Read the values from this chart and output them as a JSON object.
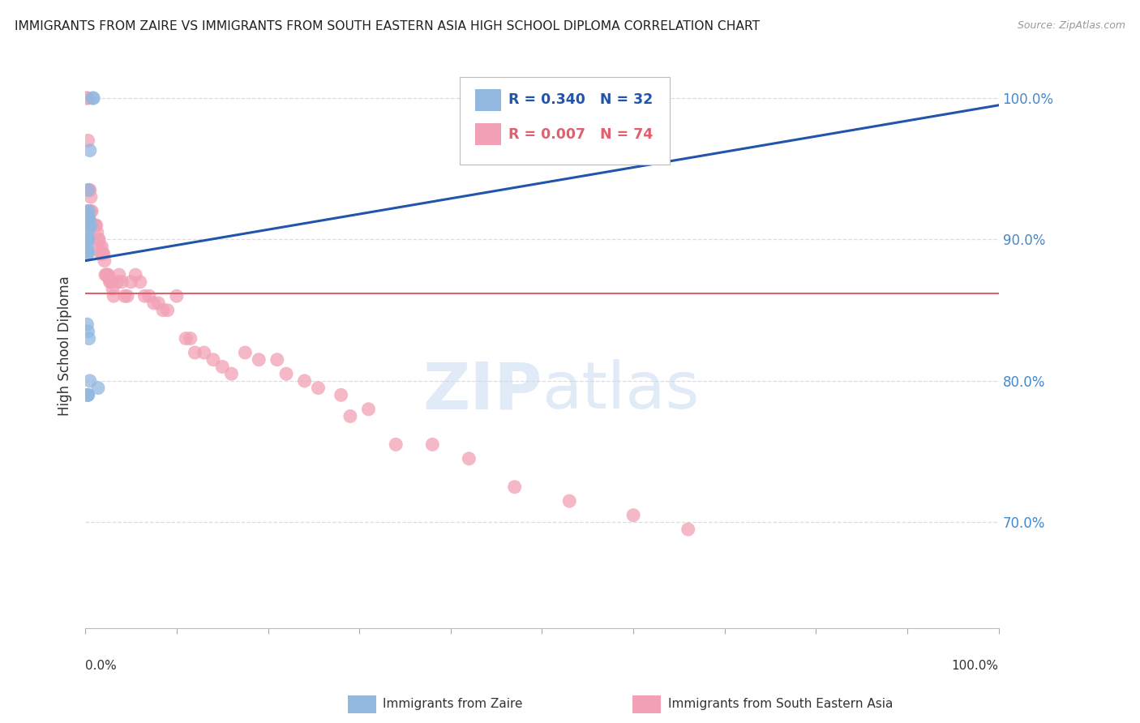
{
  "title": "IMMIGRANTS FROM ZAIRE VS IMMIGRANTS FROM SOUTH EASTERN ASIA HIGH SCHOOL DIPLOMA CORRELATION CHART",
  "source": "Source: ZipAtlas.com",
  "ylabel": "High School Diploma",
  "legend_label_blue": "R = 0.340   N = 32",
  "legend_label_pink": "R = 0.007   N = 74",
  "right_ytick_labels": [
    "100.0%",
    "90.0%",
    "80.0%",
    "70.0%"
  ],
  "right_ytick_values": [
    1.0,
    0.9,
    0.8,
    0.7
  ],
  "xlim": [
    0.0,
    1.0
  ],
  "ylim": [
    0.625,
    1.025
  ],
  "bottom_labels": [
    "Immigrants from Zaire",
    "Immigrants from South Eastern Asia"
  ],
  "blue_color": "#92b8e0",
  "pink_color": "#f2a0b5",
  "trend_blue_color": "#2255aa",
  "trend_pink_color": "#e06070",
  "blue_scatter_x": [
    0.008,
    0.009,
    0.005,
    0.003,
    0.003,
    0.003,
    0.004,
    0.003,
    0.003,
    0.004,
    0.003,
    0.003,
    0.003,
    0.006,
    0.003,
    0.004,
    0.003,
    0.002,
    0.002,
    0.003,
    0.002,
    0.003,
    0.003,
    0.002,
    0.002,
    0.003,
    0.004,
    0.005,
    0.014,
    0.002,
    0.003,
    0.003
  ],
  "blue_scatter_y": [
    1.0,
    1.0,
    0.963,
    0.935,
    0.92,
    0.92,
    0.915,
    0.915,
    0.915,
    0.914,
    0.913,
    0.912,
    0.912,
    0.91,
    0.91,
    0.908,
    0.905,
    0.9,
    0.9,
    0.9,
    0.895,
    0.892,
    0.89,
    0.89,
    0.84,
    0.835,
    0.83,
    0.8,
    0.795,
    0.79,
    0.79,
    0.79
  ],
  "pink_scatter_x": [
    0.002,
    0.002,
    0.003,
    0.004,
    0.004,
    0.005,
    0.005,
    0.006,
    0.006,
    0.007,
    0.008,
    0.009,
    0.01,
    0.01,
    0.011,
    0.012,
    0.013,
    0.014,
    0.015,
    0.016,
    0.017,
    0.018,
    0.018,
    0.019,
    0.02,
    0.021,
    0.022,
    0.023,
    0.024,
    0.025,
    0.026,
    0.027,
    0.028,
    0.029,
    0.03,
    0.031,
    0.035,
    0.037,
    0.04,
    0.043,
    0.046,
    0.05,
    0.055,
    0.06,
    0.065,
    0.07,
    0.075,
    0.08,
    0.085,
    0.09,
    0.1,
    0.11,
    0.115,
    0.12,
    0.13,
    0.14,
    0.15,
    0.16,
    0.175,
    0.19,
    0.21,
    0.22,
    0.24,
    0.255,
    0.28,
    0.29,
    0.31,
    0.34,
    0.38,
    0.42,
    0.47,
    0.53,
    0.6,
    0.66
  ],
  "pink_scatter_y": [
    1.0,
    1.0,
    0.97,
    0.935,
    0.92,
    0.935,
    0.92,
    0.93,
    0.92,
    0.92,
    0.91,
    0.91,
    0.91,
    0.91,
    0.91,
    0.91,
    0.905,
    0.9,
    0.9,
    0.895,
    0.89,
    0.895,
    0.89,
    0.89,
    0.89,
    0.885,
    0.875,
    0.875,
    0.875,
    0.875,
    0.872,
    0.87,
    0.87,
    0.87,
    0.865,
    0.86,
    0.87,
    0.875,
    0.87,
    0.86,
    0.86,
    0.87,
    0.875,
    0.87,
    0.86,
    0.86,
    0.855,
    0.855,
    0.85,
    0.85,
    0.86,
    0.83,
    0.83,
    0.82,
    0.82,
    0.815,
    0.81,
    0.805,
    0.82,
    0.815,
    0.815,
    0.805,
    0.8,
    0.795,
    0.79,
    0.775,
    0.78,
    0.755,
    0.755,
    0.745,
    0.725,
    0.715,
    0.705,
    0.695
  ],
  "blue_trend_x_start": 0.0,
  "blue_trend_x_end": 1.0,
  "blue_trend_y_start": 0.885,
  "blue_trend_y_end": 0.995,
  "pink_trend_y_const": 0.862,
  "background_color": "#ffffff",
  "grid_color": "#dddddd"
}
